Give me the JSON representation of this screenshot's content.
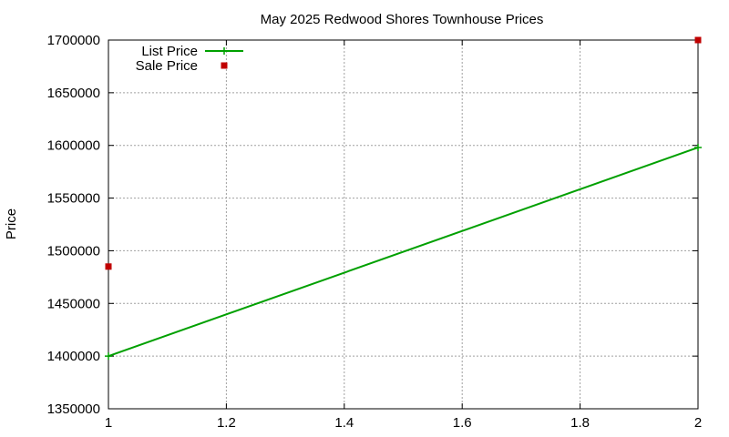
{
  "chart_data": {
    "type": "line",
    "title": "May 2025 Redwood Shores Townhouse Prices",
    "xlabel": "",
    "ylabel": "Price",
    "xlim": [
      1,
      2
    ],
    "ylim": [
      1350000,
      1700000
    ],
    "xticks": [
      "1",
      "1.2",
      "1.4",
      "1.6",
      "1.8",
      "2"
    ],
    "yticks": [
      "1350000",
      "1400000",
      "1450000",
      "1500000",
      "1550000",
      "1600000",
      "1650000",
      "1700000"
    ],
    "grid": true,
    "legend_position": "top-left",
    "series": [
      {
        "name": "List Price",
        "style": "linespoints",
        "color": "#00a000",
        "x": [
          1,
          2
        ],
        "y": [
          1400000,
          1598000
        ]
      },
      {
        "name": "Sale Price",
        "style": "points",
        "color": "#c00000",
        "x": [
          1,
          2
        ],
        "y": [
          1485000,
          1700000
        ]
      }
    ]
  }
}
